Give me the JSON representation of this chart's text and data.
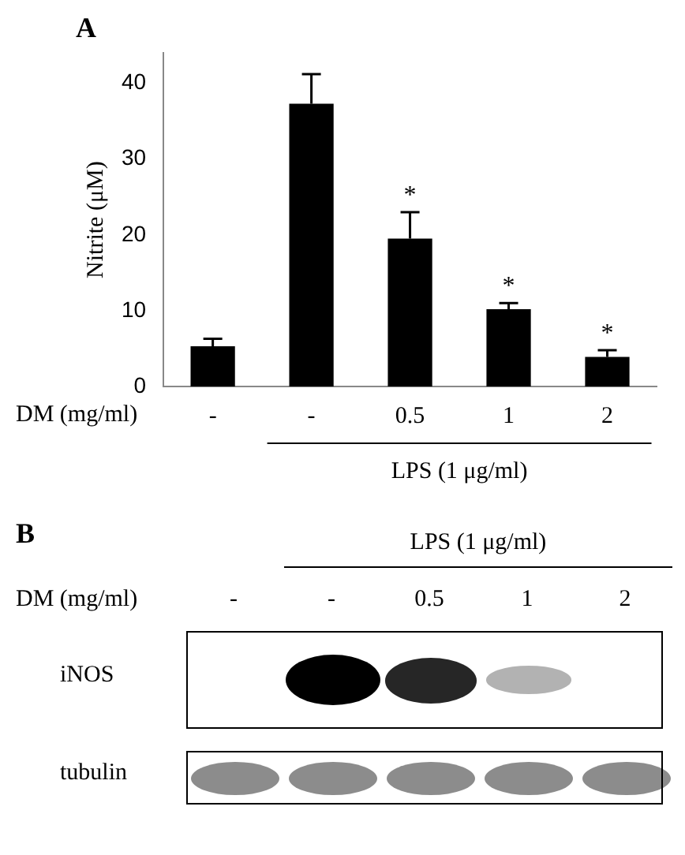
{
  "chart_data": [
    {
      "type": "bar",
      "title": "A",
      "ylabel": "Nitrite (μM)",
      "xlabel": "DM (mg/ml)",
      "categories": [
        "-",
        "-",
        "0.5",
        "1",
        "2"
      ],
      "values": [
        5.3,
        37.3,
        19.5,
        10.2,
        3.9
      ],
      "errors": [
        [
          5.3,
          6.3
        ],
        [
          37.3,
          41.2
        ],
        [
          19.5,
          23
        ],
        [
          10.2,
          11
        ],
        [
          3.9,
          4.8
        ]
      ],
      "value_labels": [
        null,
        null,
        "*",
        "*",
        "*"
      ],
      "color": "#000000",
      "ylim": [
        0,
        44
      ],
      "yticks": [
        0,
        10,
        20,
        30,
        40
      ],
      "grid": false,
      "annotations": [
        "LPS (1 μg/ml)"
      ]
    },
    {
      "type": "other",
      "title": "B",
      "xlabel": "DM (mg/ml)",
      "categories": [
        "-",
        "-",
        "0.5",
        "1",
        "2"
      ],
      "annotations": [
        "LPS (1 μg/ml)",
        "iNOS",
        "tubulin"
      ]
    }
  ]
}
